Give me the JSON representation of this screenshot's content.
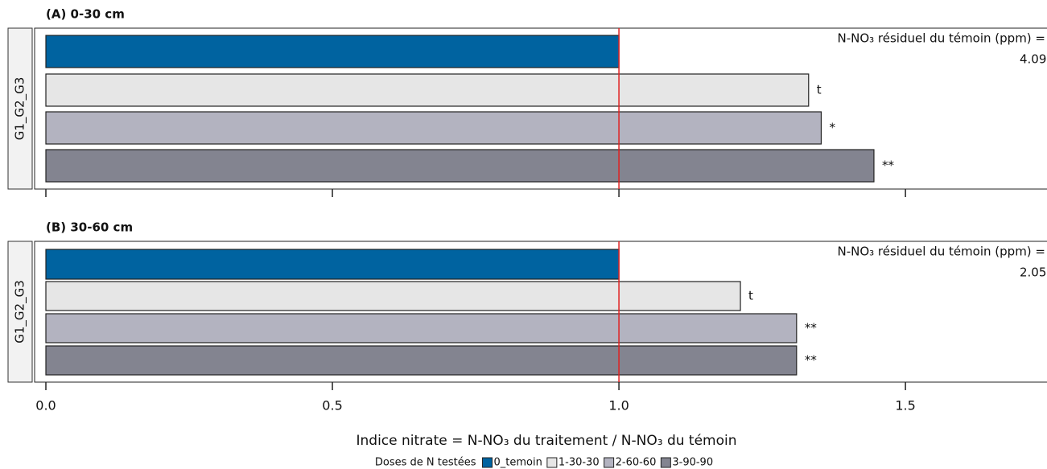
{
  "chart_data": {
    "type": "bar",
    "orientation": "horizontal",
    "xlabel": "Indice nitrate = N-NO₃ du traitement / N-NO₃ du témoin",
    "legend_title": "Doses de N testées",
    "xlim": [
      0,
      1.747
    ],
    "xticks": [
      {
        "value": 0,
        "label": "0.0"
      },
      0.5,
      {
        "value": 1,
        "label": "1.0"
      },
      1.5
    ],
    "reference_line": 1,
    "reference_color": "#e02020",
    "series": [
      {
        "name": "0_temoin",
        "color": "#0063a0"
      },
      {
        "name": "1-30-30",
        "color": "#e6e6e6"
      },
      {
        "name": "2-60-60",
        "color": "#b3b3c0"
      },
      {
        "name": "3-90-90",
        "color": "#838490"
      }
    ],
    "panels": [
      {
        "title": "(A) 0-30 cm",
        "category": "G1_G2_G3",
        "note": "N-NO₃ résiduel du témoin (ppm) =",
        "note_value": "4.09",
        "values": [
          1.0,
          1.331,
          1.353,
          1.445
        ],
        "annotations": [
          null,
          "t",
          "*",
          "**"
        ]
      },
      {
        "title": "(B) 30-60 cm",
        "category": "G1_G2_G3",
        "note": "N-NO₃ résiduel du témoin (ppm) =",
        "note_value": "2.05",
        "values": [
          1.0,
          1.212,
          1.31,
          1.31
        ],
        "annotations": [
          null,
          "t",
          "**",
          "**"
        ]
      }
    ]
  }
}
